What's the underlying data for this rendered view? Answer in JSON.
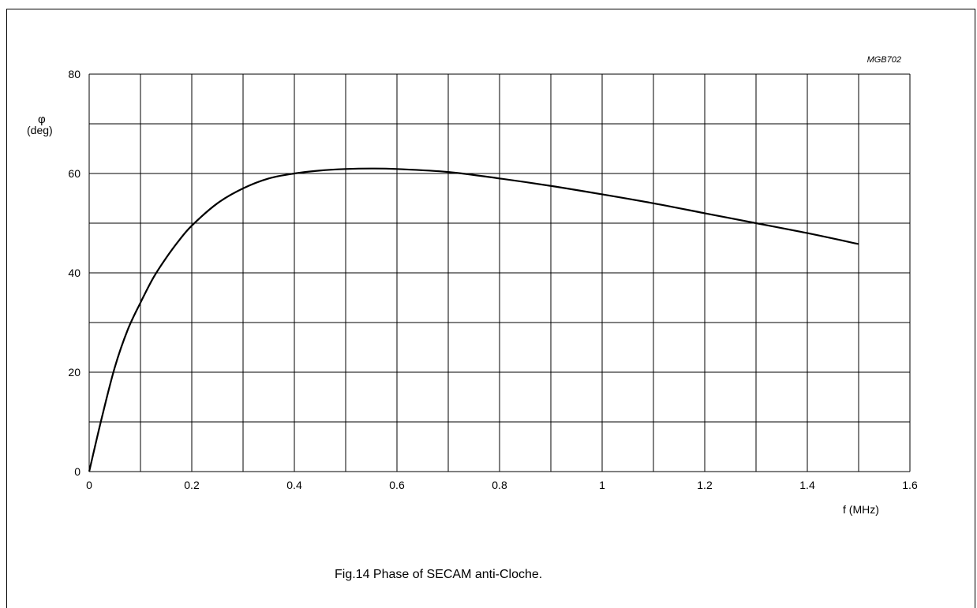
{
  "chart_data": {
    "type": "line",
    "ref_code": "MGB702",
    "ylabel_symbol": "φ",
    "ylabel_unit": "(deg)",
    "xlabel": "f (MHz)",
    "caption": "Fig.14  Phase of SECAM anti-Cloche.",
    "xlim": [
      0,
      1.6
    ],
    "ylim": [
      0,
      80
    ],
    "x_ticks": [
      0,
      0.2,
      0.4,
      0.6,
      0.8,
      1,
      1.2,
      1.4,
      1.6
    ],
    "x_tick_labels": [
      "0",
      "0.2",
      "0.4",
      "0.6",
      "0.8",
      "1",
      "1.2",
      "1.4",
      "1.6"
    ],
    "y_ticks": [
      0,
      20,
      40,
      60,
      80
    ],
    "y_tick_labels": [
      "0",
      "20",
      "40",
      "60",
      "80"
    ],
    "x_grid_step": 0.1,
    "y_grid_step": 10,
    "grid": true,
    "series": [
      {
        "x": [
          0,
          0.025,
          0.05,
          0.075,
          0.1,
          0.125,
          0.15,
          0.175,
          0.2,
          0.25,
          0.3,
          0.35,
          0.4,
          0.45,
          0.5,
          0.55,
          0.6,
          0.7,
          0.8,
          0.9,
          1.0,
          1.1,
          1.2,
          1.3,
          1.4,
          1.5
        ],
        "y": [
          0,
          11,
          21,
          28.5,
          34,
          39,
          43,
          46.5,
          49.5,
          54,
          57,
          59,
          60,
          60.6,
          60.9,
          61,
          60.9,
          60.3,
          59,
          57.5,
          55.8,
          54,
          52,
          50,
          48,
          45.8
        ]
      }
    ]
  }
}
